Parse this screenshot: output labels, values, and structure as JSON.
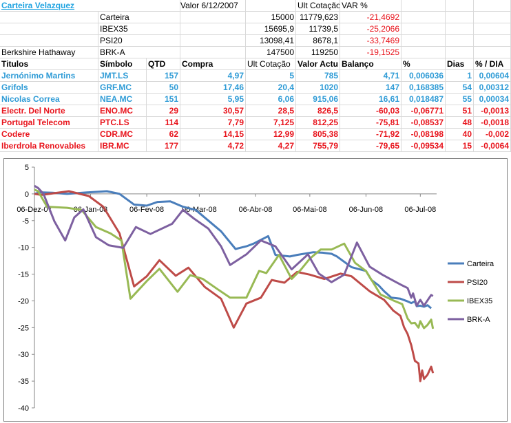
{
  "sheet": {
    "title": "Carteira Velazquez",
    "header": {
      "valor_date": "Valor 6/12/2007",
      "ult": "Ult Cotação",
      "var": "VAR %"
    },
    "summary": [
      {
        "label": "",
        "ticker": "Carteira",
        "valor": "15000",
        "ult": "11779,623",
        "var": "-21,4692"
      },
      {
        "label": "",
        "ticker": "IBEX35",
        "valor": "15695,9",
        "ult": "11739,5",
        "var": "-25,2066"
      },
      {
        "label": "",
        "ticker": "PSI20",
        "valor": "13098,41",
        "ult": "8678,1",
        "var": "-33,7469"
      },
      {
        "label": "Berkshire Hathaway",
        "ticker": "BRK-A",
        "valor": "147500",
        "ult": "119250",
        "var": "-19,1525"
      }
    ],
    "columns": [
      "Titulos",
      "Símbolo",
      "QTD",
      "Compra",
      "Ult Cotação",
      "Valor Actu",
      "Balanço",
      "%",
      "Dias",
      "% / DIA"
    ],
    "rows": [
      {
        "name": "Jernónimo Martins",
        "sym": "JMT.LS",
        "qtd": "157",
        "compra": "4,97",
        "ult": "5",
        "valor": "785",
        "bal": "4,71",
        "pct": "0,006036",
        "dias": "1",
        "pdia": "0,00604",
        "color": "blue"
      },
      {
        "name": "Grifols",
        "sym": "GRF.MC",
        "qtd": "50",
        "compra": "17,46",
        "ult": "20,4",
        "valor": "1020",
        "bal": "147",
        "pct": "0,168385",
        "dias": "54",
        "pdia": "0,00312",
        "color": "blue"
      },
      {
        "name": "Nicolas Correa",
        "sym": "NEA.MC",
        "qtd": "151",
        "compra": "5,95",
        "ult": "6,06",
        "valor": "915,06",
        "bal": "16,61",
        "pct": "0,018487",
        "dias": "55",
        "pdia": "0,00034",
        "color": "blue"
      },
      {
        "name": "Electr. Del Norte",
        "sym": "ENO.MC",
        "qtd": "29",
        "compra": "30,57",
        "ult": "28,5",
        "valor": "826,5",
        "bal": "-60,03",
        "pct": "-0,06771",
        "dias": "51",
        "pdia": "-0,0013",
        "color": "red"
      },
      {
        "name": "Portugal Telecom",
        "sym": "PTC.LS",
        "qtd": "114",
        "compra": "7,79",
        "ult": "7,125",
        "valor": "812,25",
        "bal": "-75,81",
        "pct": "-0,08537",
        "dias": "48",
        "pdia": "-0,0018",
        "color": "red"
      },
      {
        "name": "Codere",
        "sym": "CDR.MC",
        "qtd": "62",
        "compra": "14,15",
        "ult": "12,99",
        "valor": "805,38",
        "bal": "-71,92",
        "pct": "-0,08198",
        "dias": "40",
        "pdia": "-0,002",
        "color": "red"
      },
      {
        "name": "Iberdrola Renovables",
        "sym": "IBR.MC",
        "qtd": "177",
        "compra": "4,72",
        "ult": "4,27",
        "valor": "755,79",
        "bal": "-79,65",
        "pct": "-0,09534",
        "dias": "15",
        "pdia": "-0,0064",
        "color": "red"
      }
    ]
  },
  "chart_data": {
    "type": "line",
    "title": "",
    "xlabel": "",
    "ylabel": "",
    "ylim": [
      -40,
      5
    ],
    "yticks": [
      5,
      0,
      -5,
      -10,
      -15,
      -20,
      -25,
      -30,
      -35,
      -40
    ],
    "xlim": [
      "2007-12-06",
      "2008-07-15"
    ],
    "xticks": [
      "06-Dez-07",
      "06-Jan-08",
      "06-Fev-08",
      "06-Mar-08",
      "06-Abr-08",
      "06-Mai-08",
      "06-Jun-08",
      "06-Jul-08"
    ],
    "xtick_dates": [
      "2007-12-06",
      "2008-01-06",
      "2008-02-06",
      "2008-03-06",
      "2008-04-06",
      "2008-05-06",
      "2008-06-06",
      "2008-07-06"
    ],
    "legend": "right",
    "series": [
      {
        "name": "Carteira",
        "color": "#4a7ebb",
        "points": [
          [
            "2007-12-06",
            0
          ],
          [
            "2007-12-09",
            0.3
          ],
          [
            "2007-12-16",
            0.2
          ],
          [
            "2007-12-24",
            0
          ],
          [
            "2008-01-05",
            0.3
          ],
          [
            "2008-01-15",
            0.5
          ],
          [
            "2008-01-22",
            0
          ],
          [
            "2008-01-30",
            -2
          ],
          [
            "2008-02-06",
            -2.2
          ],
          [
            "2008-02-12",
            -1.5
          ],
          [
            "2008-02-19",
            -1.4
          ],
          [
            "2008-02-26",
            -2.4
          ],
          [
            "2008-03-04",
            -3
          ],
          [
            "2008-03-18",
            -7
          ],
          [
            "2008-03-26",
            -10.3
          ],
          [
            "2008-04-01",
            -9.8
          ],
          [
            "2008-04-05",
            -9.3
          ],
          [
            "2008-04-13",
            -7.9
          ],
          [
            "2008-04-17",
            -11.4
          ],
          [
            "2008-04-25",
            -11.7
          ],
          [
            "2008-04-29",
            -11.4
          ],
          [
            "2008-05-08",
            -10.9
          ],
          [
            "2008-05-13",
            -11
          ],
          [
            "2008-05-18",
            -11.2
          ],
          [
            "2008-05-21",
            -11.7
          ],
          [
            "2008-05-29",
            -13.7
          ],
          [
            "2008-06-06",
            -14.4
          ],
          [
            "2008-06-09",
            -16.1
          ],
          [
            "2008-06-13",
            -17.1
          ],
          [
            "2008-06-16",
            -18.2
          ],
          [
            "2008-06-20",
            -19.4
          ],
          [
            "2008-06-25",
            -19.6
          ],
          [
            "2008-06-29",
            -20.1
          ],
          [
            "2008-07-01",
            -20.4
          ],
          [
            "2008-07-03",
            -20.1
          ],
          [
            "2008-07-04",
            -21
          ],
          [
            "2008-07-06",
            -20.9
          ],
          [
            "2008-07-08",
            -21.1
          ],
          [
            "2008-07-10",
            -20.8
          ],
          [
            "2008-07-12",
            -21.4
          ]
        ]
      },
      {
        "name": "PSI20",
        "color": "#be4b48",
        "points": [
          [
            "2007-12-06",
            0
          ],
          [
            "2007-12-10",
            -0.2
          ],
          [
            "2007-12-25",
            0.5
          ],
          [
            "2008-01-05",
            -0.4
          ],
          [
            "2008-01-13",
            -2.4
          ],
          [
            "2008-01-22",
            -7.4
          ],
          [
            "2008-01-30",
            -17.3
          ],
          [
            "2008-02-06",
            -15.4
          ],
          [
            "2008-02-13",
            -12.4
          ],
          [
            "2008-02-22",
            -15.3
          ],
          [
            "2008-02-29",
            -13.8
          ],
          [
            "2008-03-09",
            -17.4
          ],
          [
            "2008-03-18",
            -19.6
          ],
          [
            "2008-03-25",
            -25
          ],
          [
            "2008-04-01",
            -20.5
          ],
          [
            "2008-04-09",
            -19.4
          ],
          [
            "2008-04-15",
            -16.1
          ],
          [
            "2008-04-22",
            -16.6
          ],
          [
            "2008-04-29",
            -14.6
          ],
          [
            "2008-05-06",
            -15.1
          ],
          [
            "2008-05-14",
            -15.9
          ],
          [
            "2008-05-23",
            -14.9
          ],
          [
            "2008-05-29",
            -15.4
          ],
          [
            "2008-06-08",
            -18.2
          ],
          [
            "2008-06-16",
            -19.8
          ],
          [
            "2008-06-21",
            -21.8
          ],
          [
            "2008-06-25",
            -22.8
          ],
          [
            "2008-06-27",
            -24.9
          ],
          [
            "2008-06-29",
            -26.2
          ],
          [
            "2008-07-01",
            -28.3
          ],
          [
            "2008-07-03",
            -31.2
          ],
          [
            "2008-07-05",
            -31.7
          ],
          [
            "2008-07-06",
            -35
          ],
          [
            "2008-07-07",
            -33
          ],
          [
            "2008-07-08",
            -34.6
          ],
          [
            "2008-07-10",
            -33.8
          ],
          [
            "2008-07-12",
            -32.3
          ],
          [
            "2008-07-13",
            -33.5
          ]
        ]
      },
      {
        "name": "IBEX35",
        "color": "#98b954",
        "points": [
          [
            "2007-12-06",
            0.8
          ],
          [
            "2007-12-08",
            0.5
          ],
          [
            "2007-12-13",
            -2.4
          ],
          [
            "2007-12-24",
            -2.6
          ],
          [
            "2008-01-01",
            -3
          ],
          [
            "2008-01-09",
            -6.2
          ],
          [
            "2008-01-17",
            -7.4
          ],
          [
            "2008-01-23",
            -8.7
          ],
          [
            "2008-01-28",
            -19.6
          ],
          [
            "2008-02-06",
            -16.3
          ],
          [
            "2008-02-13",
            -14
          ],
          [
            "2008-02-23",
            -18.3
          ],
          [
            "2008-03-01",
            -15.2
          ],
          [
            "2008-03-08",
            -15.9
          ],
          [
            "2008-03-16",
            -17.8
          ],
          [
            "2008-03-23",
            -19.4
          ],
          [
            "2008-04-01",
            -19.4
          ],
          [
            "2008-04-08",
            -14.4
          ],
          [
            "2008-04-12",
            -14.8
          ],
          [
            "2008-04-19",
            -11.4
          ],
          [
            "2008-04-26",
            -15.9
          ],
          [
            "2008-05-01",
            -14.2
          ],
          [
            "2008-05-06",
            -12.1
          ],
          [
            "2008-05-12",
            -10.4
          ],
          [
            "2008-05-18",
            -10.4
          ],
          [
            "2008-05-25",
            -9.3
          ],
          [
            "2008-05-31",
            -12.9
          ],
          [
            "2008-06-06",
            -14.4
          ],
          [
            "2008-06-14",
            -18.8
          ],
          [
            "2008-06-21",
            -19.9
          ],
          [
            "2008-06-26",
            -20.6
          ],
          [
            "2008-06-29",
            -23.3
          ],
          [
            "2008-07-01",
            -24.2
          ],
          [
            "2008-07-03",
            -24.1
          ],
          [
            "2008-07-05",
            -25
          ],
          [
            "2008-07-06",
            -23.8
          ],
          [
            "2008-07-08",
            -25.1
          ],
          [
            "2008-07-10",
            -24.5
          ],
          [
            "2008-07-12",
            -23.5
          ],
          [
            "2008-07-13",
            -25.2
          ]
        ]
      },
      {
        "name": "BRK-A",
        "color": "#7d60a0",
        "points": [
          [
            "2007-12-06",
            1.5
          ],
          [
            "2007-12-08",
            1.1
          ],
          [
            "2007-12-11",
            0
          ],
          [
            "2007-12-17",
            -5.1
          ],
          [
            "2007-12-23",
            -8.7
          ],
          [
            "2007-12-28",
            -4.4
          ],
          [
            "2008-01-02",
            -2.9
          ],
          [
            "2008-01-09",
            -8.1
          ],
          [
            "2008-01-16",
            -9.6
          ],
          [
            "2008-01-24",
            -10.1
          ],
          [
            "2008-01-31",
            -6.2
          ],
          [
            "2008-02-08",
            -7.5
          ],
          [
            "2008-02-20",
            -5.6
          ],
          [
            "2008-02-26",
            -3
          ],
          [
            "2008-03-03",
            -4.6
          ],
          [
            "2008-03-11",
            -6.5
          ],
          [
            "2008-03-18",
            -9.8
          ],
          [
            "2008-03-23",
            -13.3
          ],
          [
            "2008-04-01",
            -11.3
          ],
          [
            "2008-04-09",
            -8.7
          ],
          [
            "2008-04-17",
            -9.8
          ],
          [
            "2008-04-26",
            -14.1
          ],
          [
            "2008-05-05",
            -11.3
          ],
          [
            "2008-05-11",
            -14.9
          ],
          [
            "2008-05-18",
            -16.5
          ],
          [
            "2008-05-25",
            -15.1
          ],
          [
            "2008-06-01",
            -9.1
          ],
          [
            "2008-06-08",
            -13.6
          ],
          [
            "2008-06-15",
            -15.1
          ],
          [
            "2008-06-21",
            -16.2
          ],
          [
            "2008-06-26",
            -17.1
          ],
          [
            "2008-06-29",
            -17.6
          ],
          [
            "2008-07-01",
            -19.4
          ],
          [
            "2008-07-02",
            -18.6
          ],
          [
            "2008-07-04",
            -20.9
          ],
          [
            "2008-07-06",
            -19.8
          ],
          [
            "2008-07-08",
            -20.9
          ],
          [
            "2008-07-10",
            -19.9
          ],
          [
            "2008-07-12",
            -18.9
          ],
          [
            "2008-07-13",
            -19.1
          ]
        ]
      }
    ]
  }
}
